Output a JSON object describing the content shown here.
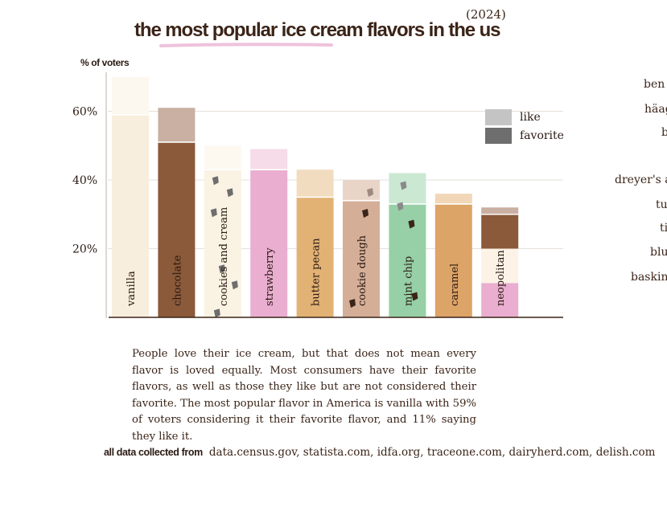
{
  "header": {
    "year": "(2024)",
    "title": "the most popular ice cream flavors in the us"
  },
  "chart_data": {
    "type": "bar",
    "stacked": true,
    "title": "the most popular ice cream flavors in the us",
    "ylabel": "% of voters",
    "ylim": [
      0,
      70
    ],
    "yticks": [
      20,
      40,
      60
    ],
    "ytick_labels": [
      "20%",
      "40%",
      "60%"
    ],
    "grid": true,
    "legend_position": "top-right",
    "categories": [
      "vanilla",
      "chocolate",
      "cookies and cream",
      "strawberry",
      "butter pecan",
      "cookie dough",
      "mint chip",
      "caramel",
      "neopolitan"
    ],
    "series": [
      {
        "name": "favorite",
        "values": [
          59,
          51,
          43,
          43,
          35,
          34,
          33,
          33,
          30
        ]
      },
      {
        "name": "like",
        "values": [
          11,
          10,
          7,
          6,
          8,
          6,
          9,
          3,
          2
        ]
      }
    ],
    "neopolitan_favorite_layers": [
      10,
      10,
      10
    ],
    "bar_colors": {
      "vanilla": {
        "favorite": "#f8eedd",
        "like": "#fdf8ef"
      },
      "chocolate": {
        "favorite": "#8a5a3a",
        "like": "#c9b0a3"
      },
      "cookies and cream": {
        "favorite": "#faf2e3",
        "like": "#fdf9f1"
      },
      "strawberry": {
        "favorite": "#e9aed0",
        "like": "#f6dbe9"
      },
      "butter pecan": {
        "favorite": "#e2b275",
        "like": "#f2dcbf"
      },
      "cookie dough": {
        "favorite": "#d5ae98",
        "like": "#e9d5c8"
      },
      "mint chip": {
        "favorite": "#97d0a7",
        "like": "#cbe8d3"
      },
      "caramel": {
        "favorite": "#dda467",
        "like": "#f1d7b8"
      },
      "neopolitan": {
        "favorite": [
          "#e9aed0",
          "#fcf3e6",
          "#8a5a3a"
        ],
        "like": "#c9b0a3"
      }
    }
  },
  "legend": {
    "items": [
      {
        "label": "like",
        "color": "#c4c4c4"
      },
      {
        "label": "favorite",
        "color": "#6e6e6e"
      }
    ]
  },
  "brands": [
    "ben",
    "häag",
    "b",
    "dreyer's a",
    "tu",
    "ti",
    "blu",
    "baskin"
  ],
  "description": "People love their ice cream, but that does not mean every flavor is loved equally. Most consumers have their favorite flavors, as well as those they like but are not considered their favorite. The most popular flavor in America is vanilla with 59% of voters considering it their favorite flavor, and 11% saying they like it.",
  "sources": {
    "label": "all data collected from",
    "list": "data.census.gov, statista.com, idfa.org, traceone.com, dairyherd.com, delish.com"
  },
  "colors": {
    "text": "#3b2418",
    "axis": "#2a1a12",
    "underline": "#e9aed0",
    "chip_dark": "#3b2418",
    "chip_grey": "#6e6e6e"
  }
}
